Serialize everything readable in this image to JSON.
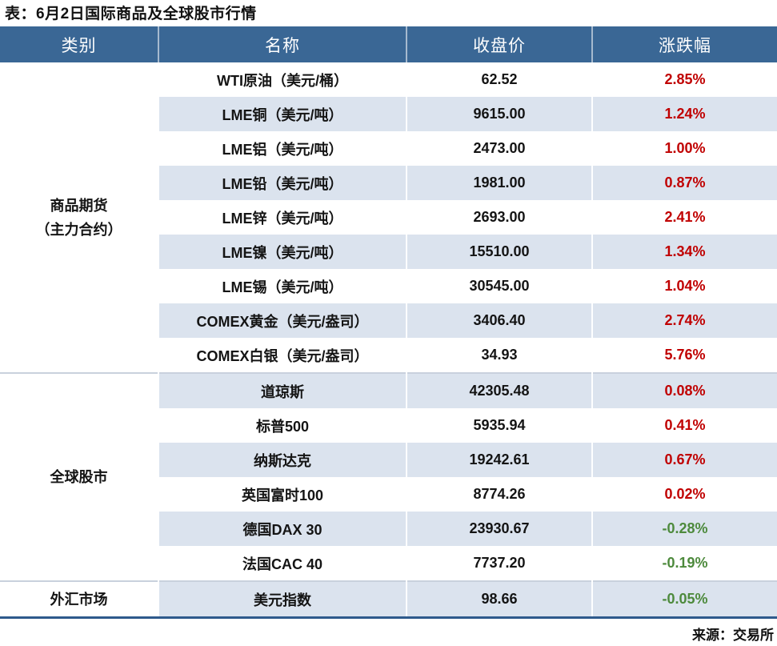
{
  "title": "表：6月2日国际商品及全球股市行情",
  "source": "来源：交易所",
  "chart_data": {
    "type": "table",
    "title": "表：6月2日国际商品及全球股市行情",
    "columns": [
      "类别",
      "名称",
      "收盘价",
      "涨跌幅"
    ],
    "groups": [
      {
        "category_lines": [
          "商品期货",
          "（主力合约）"
        ],
        "rows": [
          {
            "name": "WTI原油（美元/桶）",
            "close": "62.52",
            "change": "2.85%",
            "direction": "up"
          },
          {
            "name": "LME铜（美元/吨）",
            "close": "9615.00",
            "change": "1.24%",
            "direction": "up"
          },
          {
            "name": "LME铝（美元/吨）",
            "close": "2473.00",
            "change": "1.00%",
            "direction": "up"
          },
          {
            "name": "LME铅（美元/吨）",
            "close": "1981.00",
            "change": "0.87%",
            "direction": "up"
          },
          {
            "name": "LME锌（美元/吨）",
            "close": "2693.00",
            "change": "2.41%",
            "direction": "up"
          },
          {
            "name": "LME镍（美元/吨）",
            "close": "15510.00",
            "change": "1.34%",
            "direction": "up"
          },
          {
            "name": "LME锡（美元/吨）",
            "close": "30545.00",
            "change": "1.04%",
            "direction": "up"
          },
          {
            "name": "COMEX黄金（美元/盎司）",
            "close": "3406.40",
            "change": "2.74%",
            "direction": "up"
          },
          {
            "name": "COMEX白银（美元/盎司）",
            "close": "34.93",
            "change": "5.76%",
            "direction": "up"
          }
        ]
      },
      {
        "category_lines": [
          "全球股市"
        ],
        "rows": [
          {
            "name": "道琼斯",
            "close": "42305.48",
            "change": "0.08%",
            "direction": "up"
          },
          {
            "name": "标普500",
            "close": "5935.94",
            "change": "0.41%",
            "direction": "up"
          },
          {
            "name": "纳斯达克",
            "close": "19242.61",
            "change": "0.67%",
            "direction": "up"
          },
          {
            "name": "英国富时100",
            "close": "8774.26",
            "change": "0.02%",
            "direction": "up"
          },
          {
            "name": "德国DAX 30",
            "close": "23930.67",
            "change": "-0.28%",
            "direction": "down"
          },
          {
            "name": "法国CAC 40",
            "close": "7737.20",
            "change": "-0.19%",
            "direction": "down"
          }
        ]
      },
      {
        "category_lines": [
          "外汇市场"
        ],
        "rows": [
          {
            "name": "美元指数",
            "close": "98.66",
            "change": "-0.05%",
            "direction": "down"
          }
        ]
      }
    ],
    "source": "来源：交易所"
  },
  "colors": {
    "header_bg": "#3A6795",
    "header_text": "#FFFFFF",
    "stripe_bg": "#DBE3EE",
    "up_text": "#C00000",
    "down_text": "#4D8A3C",
    "bottom_border": "#2E5A8C",
    "group_divider": "#C9D1DD",
    "body_text": "#141414"
  }
}
